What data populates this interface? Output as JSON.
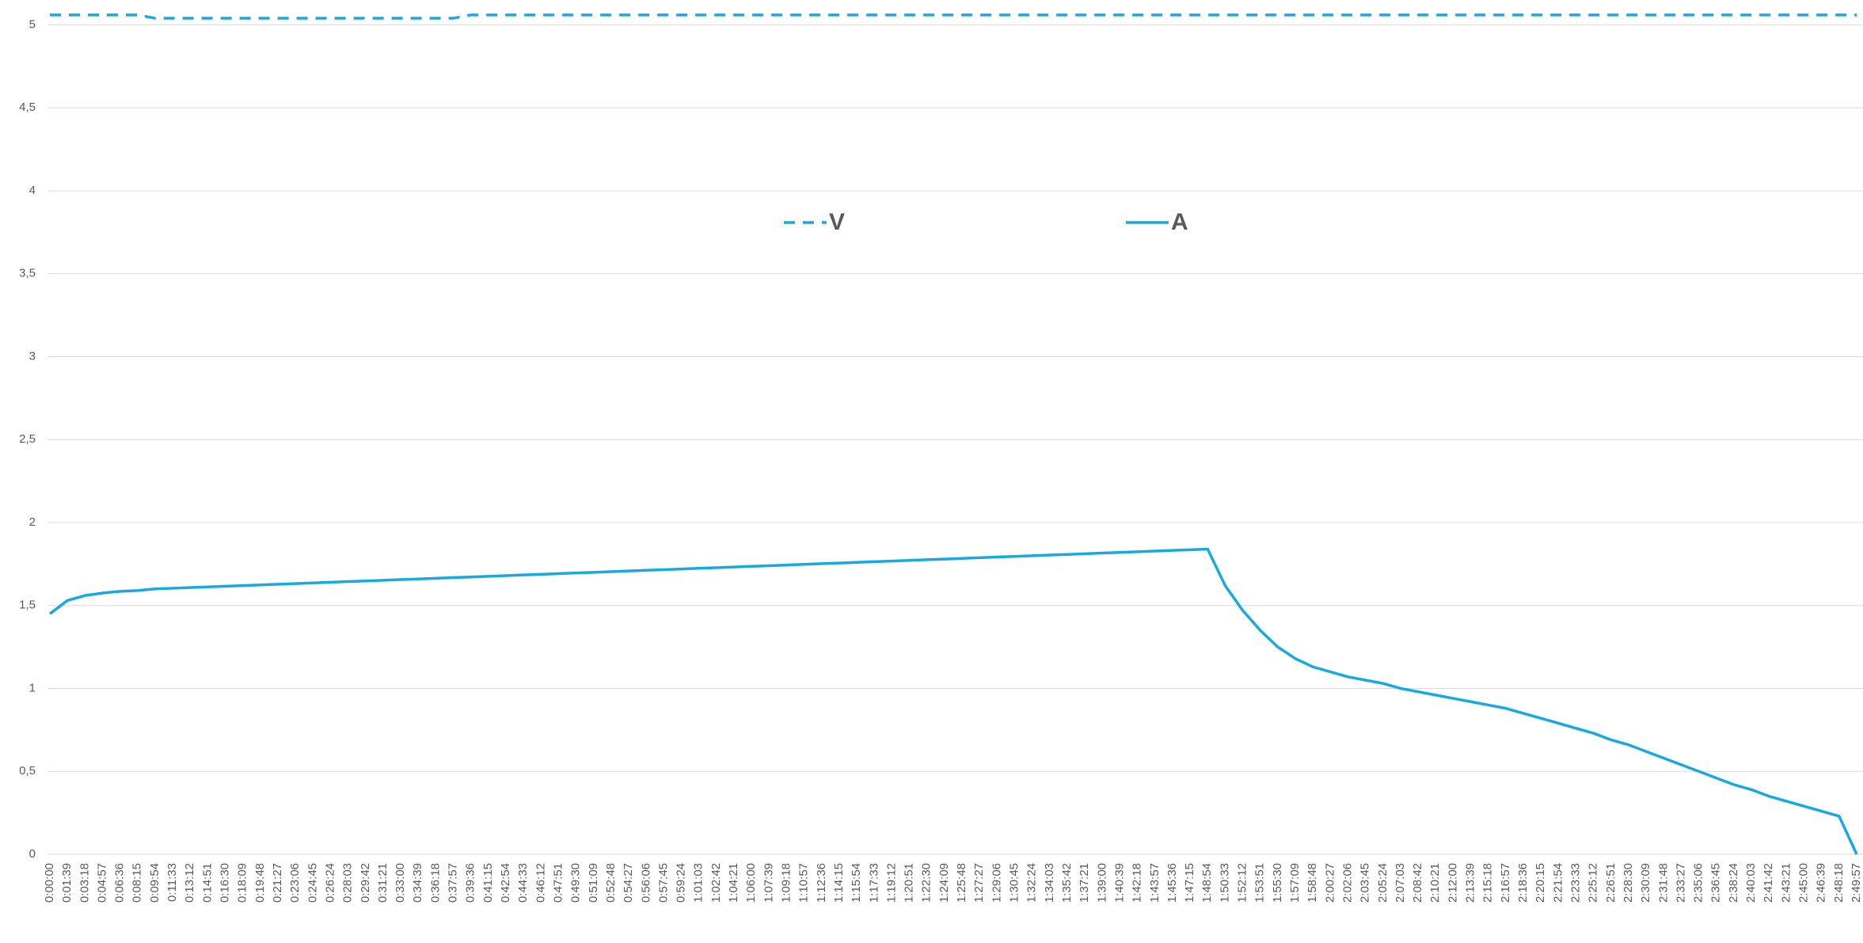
{
  "chart_data": {
    "type": "line",
    "categories": [
      "0:00:00",
      "0:01:39",
      "0:03:18",
      "0:04:57",
      "0:06:36",
      "0:08:15",
      "0:09:54",
      "0:11:33",
      "0:13:12",
      "0:14:51",
      "0:16:30",
      "0:18:09",
      "0:19:48",
      "0:21:27",
      "0:23:06",
      "0:24:45",
      "0:26:24",
      "0:28:03",
      "0:29:42",
      "0:31:21",
      "0:33:00",
      "0:34:39",
      "0:36:18",
      "0:37:57",
      "0:39:36",
      "0:41:15",
      "0:42:54",
      "0:44:33",
      "0:46:12",
      "0:47:51",
      "0:49:30",
      "0:51:09",
      "0:52:48",
      "0:54:27",
      "0:56:06",
      "0:57:45",
      "0:59:24",
      "1:01:03",
      "1:02:42",
      "1:04:21",
      "1:06:00",
      "1:07:39",
      "1:09:18",
      "1:10:57",
      "1:12:36",
      "1:14:15",
      "1:15:54",
      "1:17:33",
      "1:19:12",
      "1:20:51",
      "1:22:30",
      "1:24:09",
      "1:25:48",
      "1:27:27",
      "1:29:06",
      "1:30:45",
      "1:32:24",
      "1:34:03",
      "1:35:42",
      "1:37:21",
      "1:39:00",
      "1:40:39",
      "1:42:18",
      "1:43:57",
      "1:45:36",
      "1:47:15",
      "1:48:54",
      "1:50:33",
      "1:52:12",
      "1:53:51",
      "1:55:30",
      "1:57:09",
      "1:58:48",
      "2:00:27",
      "2:02:06",
      "2:03:45",
      "2:05:24",
      "2:07:03",
      "2:08:42",
      "2:10:21",
      "2:12:00",
      "2:13:39",
      "2:15:18",
      "2:16:57",
      "2:18:36",
      "2:20:15",
      "2:21:54",
      "2:23:33",
      "2:25:12",
      "2:26:51",
      "2:28:30",
      "2:30:09",
      "2:31:48",
      "2:33:27",
      "2:35:06",
      "2:36:45",
      "2:38:24",
      "2:40:03",
      "2:41:42",
      "2:43:21",
      "2:45:00",
      "2:46:39",
      "2:48:18",
      "2:49:57"
    ],
    "series": [
      {
        "name": "V",
        "color": "#17a9e1",
        "dash": true,
        "values": [
          5.06,
          5.06,
          5.06,
          5.06,
          5.06,
          5.06,
          5.04,
          5.04,
          5.04,
          5.04,
          5.04,
          5.04,
          5.04,
          5.04,
          5.04,
          5.04,
          5.04,
          5.04,
          5.04,
          5.04,
          5.04,
          5.04,
          5.04,
          5.04,
          5.06,
          5.06,
          5.06,
          5.06,
          5.06,
          5.06,
          5.06,
          5.06,
          5.06,
          5.06,
          5.06,
          5.06,
          5.06,
          5.06,
          5.06,
          5.06,
          5.06,
          5.06,
          5.06,
          5.06,
          5.06,
          5.06,
          5.06,
          5.06,
          5.06,
          5.06,
          5.06,
          5.06,
          5.06,
          5.06,
          5.06,
          5.06,
          5.06,
          5.06,
          5.06,
          5.06,
          5.06,
          5.06,
          5.06,
          5.06,
          5.06,
          5.06,
          5.06,
          5.06,
          5.06,
          5.06,
          5.06,
          5.06,
          5.06,
          5.06,
          5.06,
          5.06,
          5.06,
          5.06,
          5.06,
          5.06,
          5.06,
          5.06,
          5.06,
          5.06,
          5.06,
          5.06,
          5.06,
          5.06,
          5.06,
          5.06,
          5.06,
          5.06,
          5.06,
          5.06,
          5.06,
          5.06,
          5.06,
          5.06,
          5.06,
          5.06,
          5.06,
          5.06,
          5.06,
          5.06
        ]
      },
      {
        "name": "A",
        "color": "#17a9e1",
        "dash": false,
        "values": [
          1.45,
          1.53,
          1.56,
          1.575,
          1.585,
          1.59,
          1.6,
          1.604,
          1.608,
          1.612,
          1.616,
          1.62,
          1.624,
          1.628,
          1.632,
          1.636,
          1.64,
          1.644,
          1.648,
          1.652,
          1.656,
          1.66,
          1.664,
          1.668,
          1.672,
          1.676,
          1.68,
          1.684,
          1.688,
          1.692,
          1.696,
          1.7,
          1.704,
          1.708,
          1.712,
          1.716,
          1.72,
          1.724,
          1.728,
          1.732,
          1.736,
          1.74,
          1.744,
          1.748,
          1.752,
          1.756,
          1.76,
          1.764,
          1.768,
          1.772,
          1.776,
          1.78,
          1.784,
          1.788,
          1.792,
          1.796,
          1.8,
          1.804,
          1.808,
          1.812,
          1.816,
          1.82,
          1.824,
          1.828,
          1.832,
          1.836,
          1.84,
          1.62,
          1.47,
          1.35,
          1.25,
          1.18,
          1.13,
          1.1,
          1.07,
          1.05,
          1.03,
          1.0,
          0.98,
          0.96,
          0.94,
          0.92,
          0.9,
          0.88,
          0.85,
          0.82,
          0.79,
          0.76,
          0.73,
          0.69,
          0.66,
          0.62,
          0.58,
          0.54,
          0.5,
          0.46,
          0.42,
          0.39,
          0.35,
          0.32,
          0.29,
          0.26,
          0.23,
          0
        ]
      }
    ],
    "ylim": [
      0,
      5.15
    ],
    "yticks": [
      0,
      {
        "value": 0.5,
        "label": "0,5"
      },
      1,
      {
        "value": 1.5,
        "label": "1,5"
      },
      2,
      {
        "value": 2.5,
        "label": "2,5"
      },
      3,
      {
        "value": 3.5,
        "label": "3,5"
      },
      4,
      {
        "value": 4.5,
        "label": "4,5"
      },
      5
    ],
    "grid": true,
    "legend": "top"
  }
}
